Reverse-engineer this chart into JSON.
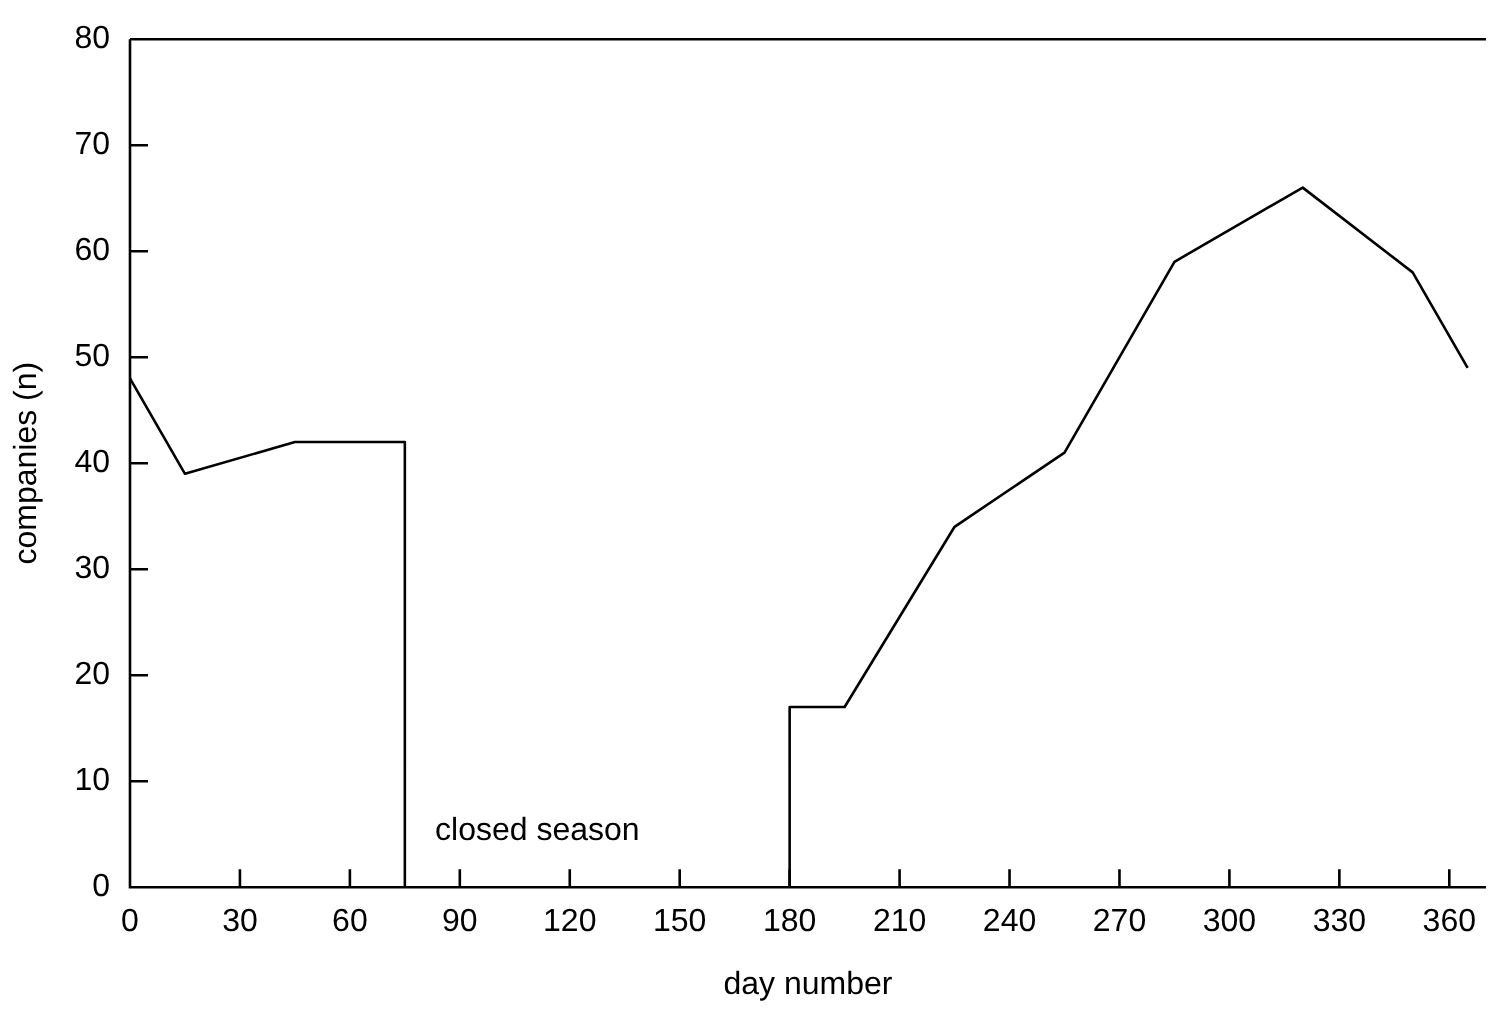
{
  "chart_data": {
    "type": "line",
    "xlabel": "day number",
    "ylabel": "companies (n)",
    "x": [
      0,
      15,
      45,
      75,
      75,
      180,
      180,
      195,
      225,
      255,
      285,
      320,
      350,
      365
    ],
    "values": [
      48,
      39,
      42,
      42,
      0,
      0,
      17,
      17,
      34,
      41,
      59,
      66,
      58,
      49
    ],
    "color": "#000000",
    "xlim": [
      0,
      370
    ],
    "xticks": [
      0,
      30,
      60,
      90,
      120,
      150,
      180,
      210,
      240,
      270,
      300,
      330,
      360
    ],
    "ylim": [
      0,
      80
    ],
    "yticks": [
      0,
      10,
      20,
      30,
      40,
      50,
      60,
      70,
      80
    ],
    "grid": false,
    "legend": false,
    "marker": "none",
    "line_style": "solid",
    "annotations": [
      "closed season"
    ]
  }
}
